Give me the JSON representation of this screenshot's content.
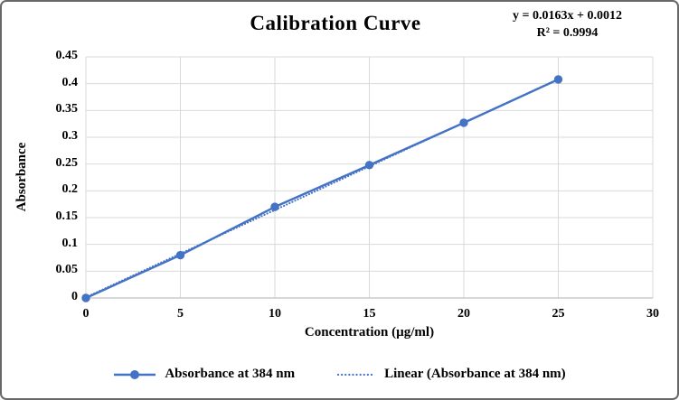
{
  "chart_data": {
    "type": "line",
    "title": "Calibration Curve",
    "xlabel": "Concentration (µg/ml)",
    "ylabel": "Absorbance",
    "x": [
      0,
      5,
      10,
      15,
      20,
      25
    ],
    "series": [
      {
        "name": "Absorbance at 384 nm",
        "values": [
          0,
          0.08,
          0.17,
          0.248,
          0.327,
          0.408
        ],
        "marker": "circle",
        "style": "solid"
      }
    ],
    "trendline": {
      "name": "Linear (Absorbance at 384 nm)",
      "slope": 0.0163,
      "intercept": 0.0012,
      "r_squared": 0.9994,
      "equation": "y = 0.0163x + 0.0012",
      "r2_label": "R² = 0.9994",
      "x_range": [
        0,
        25
      ],
      "style": "dotted"
    },
    "xlim": [
      0,
      30
    ],
    "ylim": [
      0,
      0.45
    ],
    "x_ticks": [
      "0",
      "5",
      "10",
      "15",
      "20",
      "25",
      "30"
    ],
    "y_ticks": [
      "0",
      "0.05",
      "0.1",
      "0.15",
      "0.2",
      "0.25",
      "0.3",
      "0.35",
      "0.4",
      "0.45"
    ],
    "grid": true,
    "legend_position": "bottom",
    "legend": [
      {
        "label": "Absorbance at 384 nm",
        "swatch": "solid-line-circle-marker"
      },
      {
        "label": "Linear (Absorbance at 384 nm)",
        "swatch": "dotted-line"
      }
    ],
    "colors": {
      "series": "#4472C4",
      "trendline": "#4472C4",
      "grid": "#D9D9D9",
      "axis": "#BFBFBF",
      "frame_border": "#686868",
      "text": "#000000"
    }
  }
}
